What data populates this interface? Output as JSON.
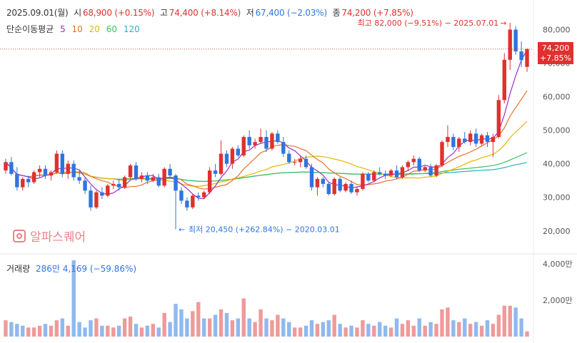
{
  "header": {
    "date": "2025.09.01(월)",
    "open_label": "시",
    "open_value": "68,900 (+0.15%)",
    "high_label": "고",
    "high_value": "74,400 (+8.14%)",
    "low_label": "저",
    "low_value": "67,400 (−2.03%)",
    "close_label": "종",
    "close_value": "74,200 (+7.85%)"
  },
  "ma_legend": {
    "label": "단순이동평균",
    "p5": "5",
    "p10": "10",
    "p20": "20",
    "p60": "60",
    "p120": "120"
  },
  "volume_legend": {
    "label": "거래량",
    "value": "286만 4,169 (−59.86%)"
  },
  "last_price_tag": {
    "price": "74,200",
    "change": "+7.85%"
  },
  "annotations": {
    "high": "최고 82,000 (−9.51%) − 2025.07.01",
    "low": "최저 20,450 (+262.84%) − 2020.03.01"
  },
  "watermark": "알파스퀘어",
  "colors": {
    "up": "#e0312e",
    "down": "#2f74e0",
    "ma5": "#9b30c8",
    "ma10": "#e8702a",
    "ma20": "#e7b400",
    "ma60": "#3fbf5b",
    "ma120": "#29b3c9"
  },
  "chart_data": {
    "type": "candlestick",
    "interval": "monthly",
    "price_axis": {
      "ticks": [
        20000,
        30000,
        40000,
        50000,
        60000,
        70000,
        80000
      ],
      "tick_labels": [
        "20,000",
        "30,000",
        "40,000",
        "50,000",
        "60,000",
        "70,000",
        "80,000"
      ],
      "range": [
        14000,
        85000
      ]
    },
    "volume_axis": {
      "ticks": [
        2000,
        4000
      ],
      "tick_labels": [
        "2,000만",
        "4,000만"
      ],
      "range": [
        0,
        4400
      ],
      "unit": "만"
    },
    "candles": [
      [
        38000,
        41500,
        37000,
        40500
      ],
      [
        40500,
        42000,
        36500,
        37000
      ],
      [
        37000,
        39000,
        32000,
        33000
      ],
      [
        33000,
        36000,
        32000,
        35500
      ],
      [
        35500,
        36500,
        33000,
        34500
      ],
      [
        34500,
        38000,
        34000,
        37500
      ],
      [
        37500,
        39500,
        36000,
        38500
      ],
      [
        38500,
        39500,
        35500,
        36500
      ],
      [
        36500,
        38000,
        35000,
        37500
      ],
      [
        37500,
        44000,
        37000,
        43000
      ],
      [
        43000,
        44000,
        36000,
        37000
      ],
      [
        37000,
        41000,
        35500,
        40000
      ],
      [
        40000,
        41000,
        35000,
        36000
      ],
      [
        36000,
        38000,
        34000,
        35000
      ],
      [
        35000,
        36000,
        31000,
        32000
      ],
      [
        32000,
        33500,
        26000,
        27000
      ],
      [
        27000,
        32000,
        26500,
        31500
      ],
      [
        31500,
        33000,
        29500,
        30500
      ],
      [
        30500,
        34000,
        30000,
        33500
      ],
      [
        33500,
        35000,
        32500,
        34000
      ],
      [
        34000,
        35500,
        32000,
        33000
      ],
      [
        33000,
        36500,
        32500,
        36000
      ],
      [
        36000,
        40000,
        35500,
        39500
      ],
      [
        39500,
        40500,
        35000,
        35500
      ],
      [
        35500,
        37500,
        34500,
        36500
      ],
      [
        36500,
        37500,
        34000,
        35000
      ],
      [
        35000,
        37000,
        34500,
        36000
      ],
      [
        36000,
        37000,
        33000,
        33500
      ],
      [
        33500,
        39000,
        33000,
        38500
      ],
      [
        38500,
        40000,
        36000,
        36500
      ],
      [
        36500,
        37000,
        20450,
        32000
      ],
      [
        32000,
        33000,
        28000,
        29000
      ],
      [
        29000,
        30000,
        26000,
        27000
      ],
      [
        27000,
        31000,
        26500,
        30500
      ],
      [
        30500,
        31500,
        29000,
        30000
      ],
      [
        30000,
        32000,
        29500,
        31500
      ],
      [
        31500,
        39000,
        31000,
        38000
      ],
      [
        38000,
        40000,
        36000,
        37000
      ],
      [
        37000,
        47000,
        36500,
        43000
      ],
      [
        43000,
        44000,
        39000,
        40000
      ],
      [
        40000,
        45000,
        38500,
        44500
      ],
      [
        44500,
        45500,
        42000,
        42500
      ],
      [
        42500,
        48500,
        42000,
        48000
      ],
      [
        48000,
        50000,
        44500,
        45500
      ],
      [
        45500,
        47500,
        44500,
        46500
      ],
      [
        46500,
        50500,
        46000,
        48000
      ],
      [
        48000,
        50000,
        43500,
        44500
      ],
      [
        44500,
        49500,
        44000,
        49000
      ],
      [
        49000,
        50000,
        46000,
        46500
      ],
      [
        46500,
        48000,
        42000,
        43000
      ],
      [
        43000,
        44000,
        40000,
        40500
      ],
      [
        40500,
        41500,
        39500,
        40500
      ],
      [
        40500,
        42500,
        39000,
        41500
      ],
      [
        41500,
        42500,
        38500,
        39000
      ],
      [
        39000,
        40000,
        32000,
        33000
      ],
      [
        33000,
        36000,
        30500,
        35500
      ],
      [
        35500,
        36000,
        33000,
        34000
      ],
      [
        34000,
        34500,
        30500,
        31000
      ],
      [
        31000,
        36000,
        30500,
        35500
      ],
      [
        35500,
        36000,
        31500,
        32000
      ],
      [
        32000,
        34500,
        31500,
        34000
      ],
      [
        34000,
        35000,
        31000,
        31500
      ],
      [
        31500,
        33000,
        30500,
        32500
      ],
      [
        32500,
        37500,
        32000,
        37000
      ],
      [
        37000,
        37500,
        34500,
        35000
      ],
      [
        35000,
        38000,
        34500,
        37500
      ],
      [
        37500,
        39000,
        36500,
        37000
      ],
      [
        37000,
        38000,
        35500,
        36500
      ],
      [
        36500,
        38500,
        36000,
        38000
      ],
      [
        38000,
        39500,
        35500,
        36000
      ],
      [
        36000,
        39500,
        35500,
        39000
      ],
      [
        39000,
        41000,
        38000,
        40500
      ],
      [
        40500,
        42500,
        39500,
        41500
      ],
      [
        41500,
        42000,
        37500,
        38000
      ],
      [
        38000,
        39500,
        37500,
        39000
      ],
      [
        39000,
        40000,
        36000,
        36500
      ],
      [
        36500,
        40000,
        36000,
        39500
      ],
      [
        39500,
        47000,
        39000,
        46500
      ],
      [
        46500,
        51500,
        45000,
        48000
      ],
      [
        48000,
        49000,
        44000,
        45000
      ],
      [
        45000,
        48000,
        43500,
        47500
      ],
      [
        47500,
        49500,
        46000,
        46500
      ],
      [
        46500,
        50000,
        45500,
        49000
      ],
      [
        49000,
        50500,
        45000,
        46000
      ],
      [
        46000,
        49000,
        45500,
        48500
      ],
      [
        48500,
        49500,
        45000,
        46500
      ],
      [
        46500,
        49000,
        42000,
        48000
      ],
      [
        48000,
        60500,
        47500,
        59000
      ],
      [
        59000,
        73000,
        58000,
        71000
      ],
      [
        71000,
        82000,
        68000,
        80000
      ],
      [
        80000,
        81000,
        72500,
        73500
      ],
      [
        73500,
        76500,
        68800,
        70900
      ],
      [
        68900,
        74400,
        67400,
        74200
      ]
    ],
    "volume": [
      [
        900,
        "up"
      ],
      [
        800,
        "down"
      ],
      [
        700,
        "down"
      ],
      [
        600,
        "down"
      ],
      [
        500,
        "up"
      ],
      [
        500,
        "up"
      ],
      [
        600,
        "up"
      ],
      [
        700,
        "down"
      ],
      [
        600,
        "up"
      ],
      [
        900,
        "up"
      ],
      [
        1000,
        "down"
      ],
      [
        600,
        "up"
      ],
      [
        4200,
        "down"
      ],
      [
        800,
        "down"
      ],
      [
        500,
        "down"
      ],
      [
        900,
        "down"
      ],
      [
        1000,
        "up"
      ],
      [
        600,
        "down"
      ],
      [
        600,
        "up"
      ],
      [
        500,
        "up"
      ],
      [
        600,
        "down"
      ],
      [
        1000,
        "up"
      ],
      [
        1100,
        "up"
      ],
      [
        700,
        "down"
      ],
      [
        500,
        "up"
      ],
      [
        600,
        "down"
      ],
      [
        700,
        "up"
      ],
      [
        500,
        "down"
      ],
      [
        1300,
        "up"
      ],
      [
        800,
        "down"
      ],
      [
        1800,
        "down"
      ],
      [
        1500,
        "down"
      ],
      [
        1000,
        "down"
      ],
      [
        1400,
        "up"
      ],
      [
        1900,
        "up"
      ],
      [
        1000,
        "down"
      ],
      [
        1000,
        "up"
      ],
      [
        1200,
        "down"
      ],
      [
        1500,
        "up"
      ],
      [
        1300,
        "down"
      ],
      [
        900,
        "up"
      ],
      [
        1000,
        "down"
      ],
      [
        2100,
        "up"
      ],
      [
        1000,
        "down"
      ],
      [
        800,
        "up"
      ],
      [
        1500,
        "up"
      ],
      [
        1000,
        "down"
      ],
      [
        900,
        "up"
      ],
      [
        1200,
        "up"
      ],
      [
        1000,
        "down"
      ],
      [
        800,
        "down"
      ],
      [
        500,
        "up"
      ],
      [
        500,
        "up"
      ],
      [
        600,
        "down"
      ],
      [
        900,
        "down"
      ],
      [
        700,
        "up"
      ],
      [
        800,
        "down"
      ],
      [
        900,
        "down"
      ],
      [
        1200,
        "up"
      ],
      [
        700,
        "down"
      ],
      [
        500,
        "up"
      ],
      [
        600,
        "down"
      ],
      [
        500,
        "up"
      ],
      [
        900,
        "up"
      ],
      [
        700,
        "down"
      ],
      [
        600,
        "up"
      ],
      [
        800,
        "down"
      ],
      [
        600,
        "down"
      ],
      [
        500,
        "up"
      ],
      [
        1000,
        "down"
      ],
      [
        700,
        "up"
      ],
      [
        900,
        "up"
      ],
      [
        600,
        "up"
      ],
      [
        1000,
        "down"
      ],
      [
        600,
        "up"
      ],
      [
        800,
        "down"
      ],
      [
        700,
        "up"
      ],
      [
        1500,
        "up"
      ],
      [
        1600,
        "up"
      ],
      [
        900,
        "down"
      ],
      [
        800,
        "up"
      ],
      [
        1000,
        "down"
      ],
      [
        700,
        "up"
      ],
      [
        800,
        "down"
      ],
      [
        600,
        "up"
      ],
      [
        900,
        "down"
      ],
      [
        700,
        "up"
      ],
      [
        1200,
        "up"
      ],
      [
        1700,
        "up"
      ],
      [
        1700,
        "up"
      ],
      [
        1600,
        "down"
      ],
      [
        1000,
        "down"
      ],
      [
        286,
        "up"
      ]
    ]
  }
}
